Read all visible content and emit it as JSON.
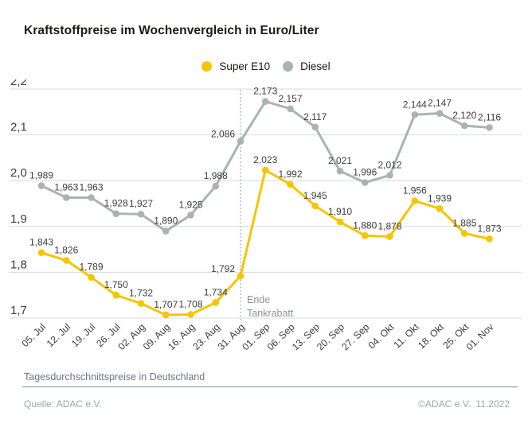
{
  "header": {
    "title": "Kraftstoffpreise im Wochenvergleich in Euro/Liter"
  },
  "legend": {
    "items": [
      {
        "label": "Super E10",
        "color": "#F6C500"
      },
      {
        "label": "Diesel",
        "color": "#A9B4B2"
      }
    ]
  },
  "chart_data": {
    "type": "line",
    "title": "Kraftstoffpreise im Wochenvergleich in Euro/Liter",
    "xlabel": "",
    "ylabel": "Euro/Liter",
    "ylim": [
      1.7,
      2.2
    ],
    "grid": true,
    "legend_position": "top-center",
    "categories": [
      "05. Jul",
      "12. Jul",
      "19. Jul",
      "26. Jul",
      "02. Aug",
      "09. Aug",
      "16. Aug",
      "23. Aug",
      "31. Aug",
      "01. Sep",
      "06. Sep",
      "13. Sep",
      "20. Sep",
      "27. Sep",
      "04. Okt",
      "11. Okt",
      "18. Okt",
      "25. Okt",
      "01. Nov"
    ],
    "yticks": {
      "values": [
        2.2,
        2.1,
        2.0,
        1.9,
        1.8,
        1.7
      ],
      "labels": [
        "2,2",
        "2,1",
        "2,0",
        "1,9",
        "1,8",
        "1,7"
      ]
    },
    "series": [
      {
        "name": "Super E10",
        "color": "#F6C500",
        "values": [
          1.843,
          1.826,
          1.789,
          1.75,
          1.732,
          1.707,
          1.708,
          1.734,
          1.792,
          2.023,
          1.992,
          1.945,
          1.91,
          1.88,
          1.878,
          1.956,
          1.939,
          1.885,
          1.873
        ],
        "labels": [
          "1,843",
          "1,826",
          "1,789",
          "1,750",
          "1,732",
          "1,707",
          "1,708",
          "1,734",
          "1,792",
          "2,023",
          "1,992",
          "1,945",
          "1,910",
          "1,880",
          "1,878",
          "1,956",
          "1,939",
          "1,885",
          "1,873"
        ]
      },
      {
        "name": "Diesel",
        "color": "#A9B4B2",
        "values": [
          1.989,
          1.963,
          1.963,
          1.928,
          1.927,
          1.89,
          1.925,
          1.988,
          2.086,
          2.173,
          2.157,
          2.117,
          2.021,
          1.996,
          2.012,
          2.144,
          2.147,
          2.12,
          2.116
        ],
        "labels": [
          "1,989",
          "1,963",
          "1,963",
          "1,928",
          "1,927",
          "1,890",
          "1,925",
          "1,988",
          "2,086",
          "2,173",
          "2,157",
          "2,117",
          "2,021",
          "1,996",
          "2,012",
          "2,144",
          "2,147",
          "2,120",
          "2,116"
        ]
      }
    ],
    "annotation": {
      "text_lines": [
        "Ende",
        "Tankrabatt"
      ],
      "category": "31. Aug",
      "category_index": 8,
      "line_style": "dotted"
    },
    "style": {
      "grid_color": "#d6dbda",
      "text_color": "#3c3c3b",
      "divider_color": "#98a3a2",
      "annotation_color": "#8a9796"
    }
  },
  "footer": {
    "note": "Tagesdurchschnittspreise in Deutschland",
    "source": "Quelle: ADAC e.V.",
    "copyright": "©ADAC e.V.  11.2022"
  }
}
